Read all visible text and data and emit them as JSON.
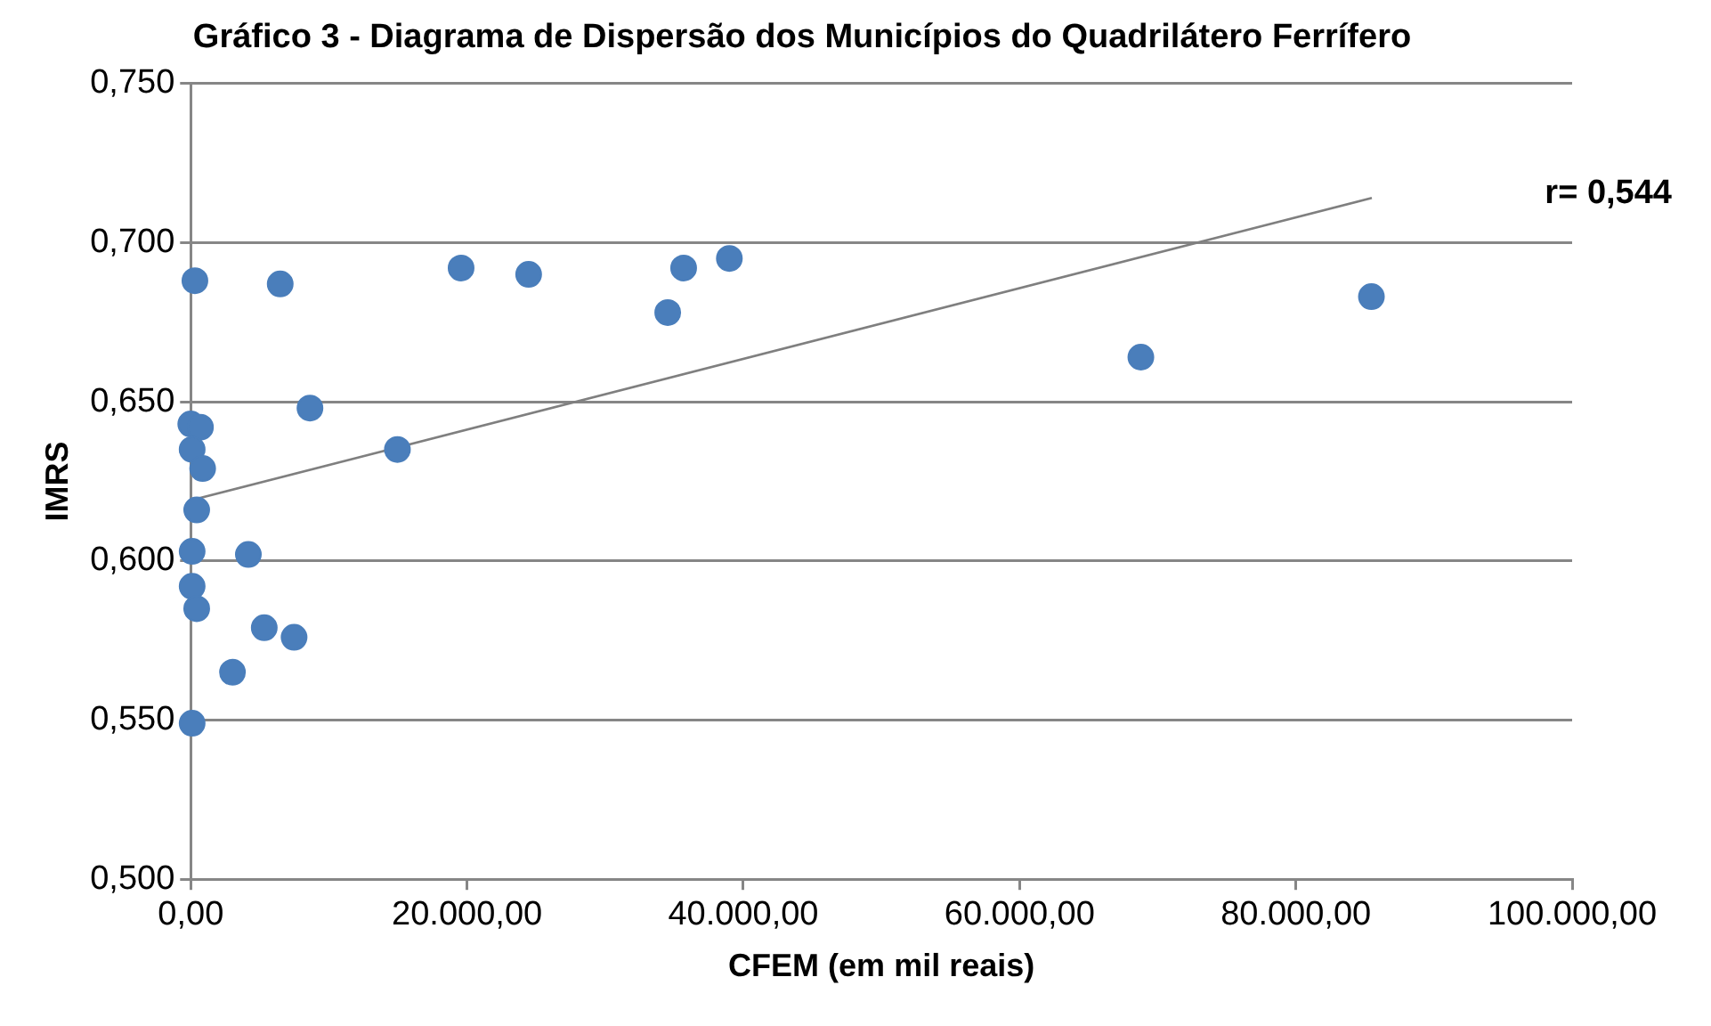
{
  "chart_data": {
    "type": "scatter",
    "title": "Gráfico 3 - Diagrama de Dispersão dos Municípios do Quadrilátero Ferrífero",
    "xlabel": "CFEM (em mil reais)",
    "ylabel": "IMRS",
    "series": [
      {
        "marker": "circle",
        "color": "#4a7ebb",
        "x": [
          300,
          6475,
          19570,
          24460,
          34530,
          35680,
          38990,
          68780,
          85470,
          8630,
          14960,
          0,
          700,
          100,
          860,
          430,
          100,
          4170,
          100,
          430,
          5320,
          7480,
          3020,
          100
        ],
        "values": [
          0.688,
          0.687,
          0.692,
          0.69,
          0.678,
          0.692,
          0.695,
          0.664,
          0.683,
          0.648,
          0.635,
          0.643,
          0.642,
          0.635,
          0.629,
          0.616,
          0.603,
          0.602,
          0.592,
          0.585,
          0.579,
          0.576,
          0.565,
          0.549
        ]
      },
      {
        "type": "line",
        "marker": "none",
        "color": "#7f7f7f",
        "x": [
          0,
          85500
        ],
        "values": [
          0.619,
          0.714
        ]
      }
    ],
    "xlim": [
      0,
      100000
    ],
    "xticks": [
      {
        "value": 0,
        "label": "0,00"
      },
      {
        "value": 20000,
        "label": "20.000,00"
      },
      {
        "value": 40000,
        "label": "40.000,00"
      },
      {
        "value": 60000,
        "label": "60.000,00"
      },
      {
        "value": 80000,
        "label": "80.000,00"
      },
      {
        "value": 100000,
        "label": "100.000,00"
      }
    ],
    "ylim": [
      0.5,
      0.75
    ],
    "yticks": [
      {
        "value": 0.5,
        "label": "0,500"
      },
      {
        "value": 0.55,
        "label": "0,550"
      },
      {
        "value": 0.6,
        "label": "0,600"
      },
      {
        "value": 0.65,
        "label": "0,650"
      },
      {
        "value": 0.7,
        "label": "0,700"
      },
      {
        "value": 0.75,
        "label": "0,750"
      }
    ],
    "annotations": [
      "r= 0,544"
    ],
    "grid": "y",
    "legend": false
  }
}
